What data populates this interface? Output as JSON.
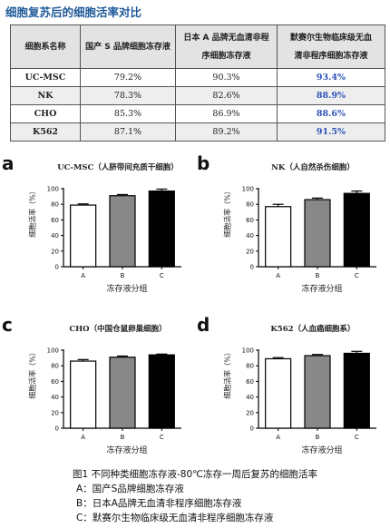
{
  "page_title": "细胞复苏后的细胞活率对比",
  "table": {
    "headers": [
      {
        "lines": [
          "细胞系名称"
        ]
      },
      {
        "lines": [
          "国产 S 品牌细胞冻存液"
        ]
      },
      {
        "lines": [
          "日本 A 品牌无血清非程",
          "序细胞冻存液"
        ]
      },
      {
        "lines": [
          "默赛尔生物临床级无血",
          "清非程序细胞冻存液"
        ]
      }
    ],
    "rows": [
      {
        "name": "UC-MSC",
        "s": "79.2%",
        "a": "90.3%",
        "c": "93.4%"
      },
      {
        "name": "NK",
        "s": "78.3%",
        "a": "82.6%",
        "c": "88.9%"
      },
      {
        "name": "CHO",
        "s": "85.3%",
        "a": "86.9%",
        "c": "88.6%"
      },
      {
        "name": "K562",
        "s": "87.1%",
        "a": "89.2%",
        "c": "91.5%"
      }
    ]
  },
  "chart_data": [
    {
      "type": "bar",
      "letter": "a",
      "title": "UC-MSC（人脐带间充质干细胞）",
      "categories": [
        "A",
        "B",
        "C"
      ],
      "values": [
        79,
        91,
        97
      ],
      "errors": [
        1.5,
        1.5,
        2.5
      ],
      "bar_colors": [
        "#ffffff",
        "#888888",
        "#000000"
      ],
      "ylabel": "细胞活率（%）",
      "xlabel": "冻存液分组",
      "ylim": [
        0,
        100
      ],
      "yticks": [
        "0",
        "20",
        "40",
        "60",
        "80",
        "100"
      ]
    },
    {
      "type": "bar",
      "letter": "b",
      "title": "NK（人自然杀伤细胞）",
      "categories": [
        "A",
        "B",
        "C"
      ],
      "values": [
        77,
        86,
        94
      ],
      "errors": [
        3,
        2,
        3
      ],
      "bar_colors": [
        "#ffffff",
        "#888888",
        "#000000"
      ],
      "ylabel": "细胞活率（%）",
      "xlabel": "冻存液分组",
      "ylim": [
        0,
        100
      ],
      "yticks": [
        "0",
        "20",
        "40",
        "60",
        "80",
        "100"
      ]
    },
    {
      "type": "bar",
      "letter": "c",
      "title": "CHO（中国仓鼠卵巢细胞）",
      "categories": [
        "A",
        "B",
        "C"
      ],
      "values": [
        86,
        91,
        94
      ],
      "errors": [
        2,
        1.5,
        1
      ],
      "bar_colors": [
        "#ffffff",
        "#888888",
        "#000000"
      ],
      "ylabel": "细胞活率（%）",
      "xlabel": "冻存液分组",
      "ylim": [
        0,
        100
      ],
      "yticks": [
        "0",
        "20",
        "40",
        "60",
        "80",
        "100"
      ]
    },
    {
      "type": "bar",
      "letter": "d",
      "title": "K562（人血癌细胞系）",
      "categories": [
        "A",
        "B",
        "C"
      ],
      "values": [
        89,
        93,
        96
      ],
      "errors": [
        1.5,
        1.5,
        2.5
      ],
      "bar_colors": [
        "#ffffff",
        "#888888",
        "#000000"
      ],
      "ylabel": "细胞活率（%）",
      "xlabel": "冻存液分组",
      "ylim": [
        0,
        100
      ],
      "yticks": [
        "0",
        "20",
        "40",
        "60",
        "80",
        "100"
      ]
    }
  ],
  "caption": {
    "title": "图1 不同种类细胞冻存液-80℃冻存一周后复苏的细胞活率",
    "items": [
      "A：国产S品牌细胞冻存液",
      "B：日本A品牌无血清非程序细胞冻存液",
      "C：默赛尔生物临床级无血清非程序细胞冻存液"
    ]
  }
}
